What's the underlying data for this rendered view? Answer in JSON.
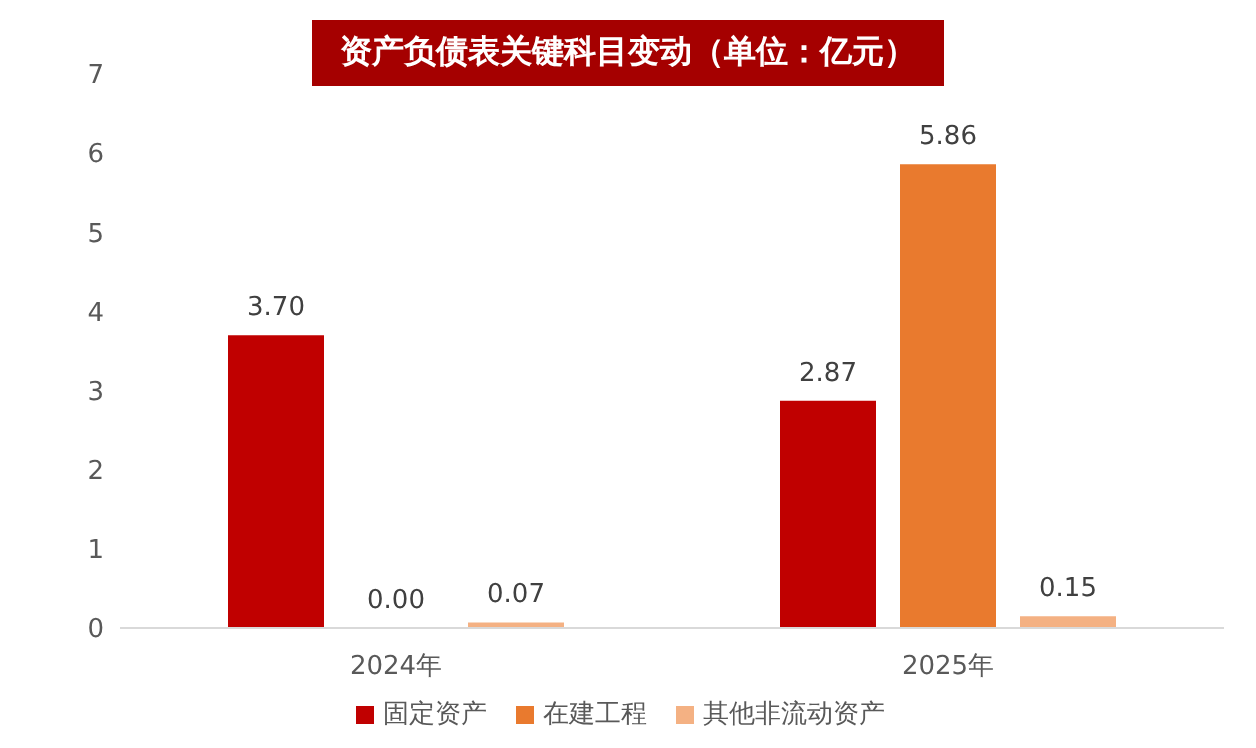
{
  "chart_data": {
    "type": "bar",
    "title": "资产负债表关键科目变动（单位：亿元）",
    "categories": [
      "2024年",
      "2025年"
    ],
    "series": [
      {
        "name": "固定资产",
        "color": "#c00000",
        "values": [
          3.7,
          2.87
        ],
        "value_labels": [
          "3.70",
          "2.87"
        ]
      },
      {
        "name": "在建工程",
        "color": "#e97a2e",
        "values": [
          0.0,
          5.86
        ],
        "value_labels": [
          "0.00",
          "5.86"
        ]
      },
      {
        "name": "其他非流动资产",
        "color": "#f4b183",
        "values": [
          0.07,
          0.15
        ],
        "value_labels": [
          "0.07",
          "0.15"
        ]
      }
    ],
    "ylim": [
      0,
      7
    ],
    "yticks": [
      0,
      1,
      2,
      3,
      4,
      5,
      6,
      7
    ],
    "grid": false,
    "legend": "bottom"
  }
}
